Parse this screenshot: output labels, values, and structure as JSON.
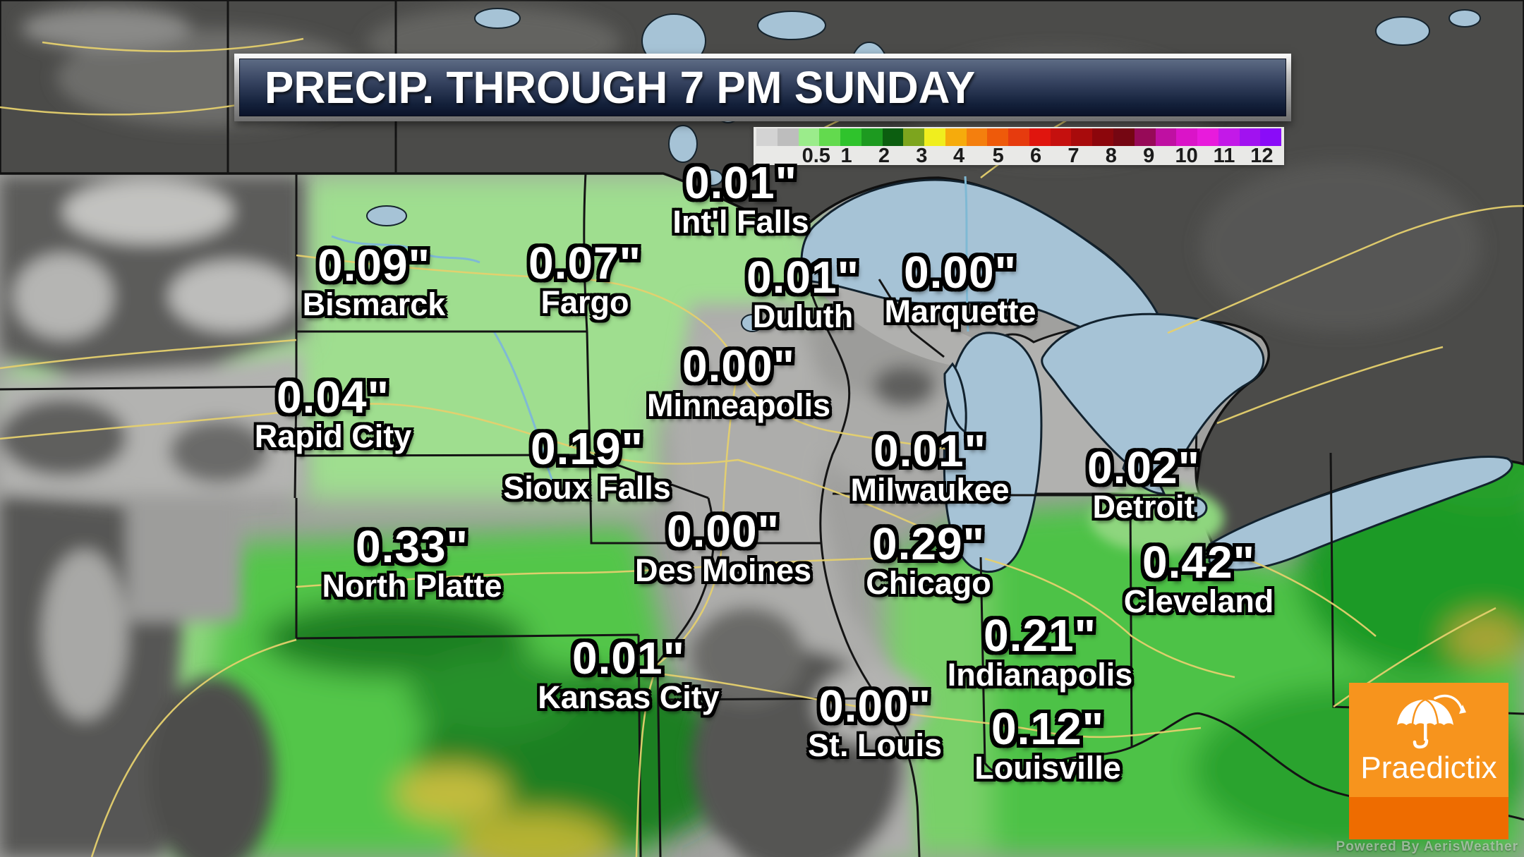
{
  "banner": {
    "title": "PRECIP. THROUGH 7 PM SUNDAY"
  },
  "legend": {
    "colors": [
      "#d3d3d3",
      "#bdbdbd",
      "#9bec8b",
      "#63da4e",
      "#2fc32c",
      "#1d9a20",
      "#0c5e10",
      "#7da51e",
      "#f0ee1e",
      "#f6ab0c",
      "#f47f0e",
      "#ee5a0a",
      "#e63b0e",
      "#e0150e",
      "#c5100e",
      "#a80b0c",
      "#8c060c",
      "#750612",
      "#970a58",
      "#bf10a2",
      "#da14c8",
      "#e81bdc",
      "#c319e8",
      "#a112f0",
      "#8a0cf8"
    ],
    "ticks": [
      {
        "label": "0.5",
        "pos": 11.8
      },
      {
        "label": "1",
        "pos": 17.5
      },
      {
        "label": "2",
        "pos": 24.6
      },
      {
        "label": "3",
        "pos": 31.7
      },
      {
        "label": "4",
        "pos": 38.7
      },
      {
        "label": "5",
        "pos": 46.1
      },
      {
        "label": "6",
        "pos": 53.2
      },
      {
        "label": "7",
        "pos": 60.3
      },
      {
        "label": "8",
        "pos": 67.4
      },
      {
        "label": "9",
        "pos": 74.5
      },
      {
        "label": "10",
        "pos": 81.6
      },
      {
        "label": "11",
        "pos": 88.7
      },
      {
        "label": "12",
        "pos": 95.8
      }
    ]
  },
  "cities": [
    {
      "name": "Int'l Falls",
      "amount": "0.01\""
    },
    {
      "name": "Bismarck",
      "amount": "0.09\""
    },
    {
      "name": "Fargo",
      "amount": "0.07\""
    },
    {
      "name": "Duluth",
      "amount": "0.01\""
    },
    {
      "name": "Marquette",
      "amount": "0.00\""
    },
    {
      "name": "Rapid City",
      "amount": "0.04\""
    },
    {
      "name": "Minneapolis",
      "amount": "0.00\""
    },
    {
      "name": "Sioux Falls",
      "amount": "0.19\""
    },
    {
      "name": "Milwaukee",
      "amount": "0.01\""
    },
    {
      "name": "Detroit",
      "amount": "0.02\""
    },
    {
      "name": "North Platte",
      "amount": "0.33\""
    },
    {
      "name": "Des Moines",
      "amount": "0.00\""
    },
    {
      "name": "Chicago",
      "amount": "0.29\""
    },
    {
      "name": "Cleveland",
      "amount": "0.42\""
    },
    {
      "name": "Indianapolis",
      "amount": "0.21\""
    },
    {
      "name": "Kansas City",
      "amount": "0.01\""
    },
    {
      "name": "St. Louis",
      "amount": "0.00\""
    },
    {
      "name": "Louisville",
      "amount": "0.12\""
    }
  ],
  "logo": {
    "brand": "Praedictix",
    "watermark": "Powered By AerisWeather",
    "background": "#f7941d",
    "accent": "#ee6c00"
  },
  "map_colors": {
    "no_data_dark": "#4b4b49",
    "precip_pale_green": "#9fde8f",
    "precip_green": "#44bb3c",
    "lake_blue": "#a6c3d6"
  }
}
